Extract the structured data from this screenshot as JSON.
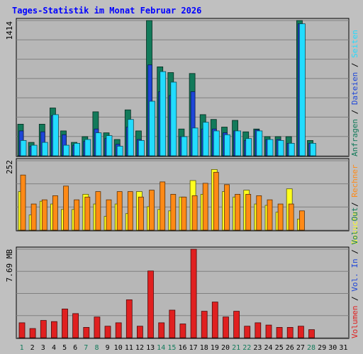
{
  "colors": {
    "background": "#c0c0c0",
    "panel": "#b7b7b7",
    "grid": "#808080",
    "title": "#0000ff",
    "anfragen": "#127a5a",
    "dateien": "#1e46d8",
    "seiten": "#22dcff",
    "besuche": "#ffff1e",
    "rechner": "#ff8a16",
    "volumen": "#e02020",
    "day_weekend": "#127a5a",
    "day_weekday": "#000000"
  },
  "chart_data": {
    "type": "bar",
    "title": "Tages-Statistik im Monat Februar 2026",
    "x": [
      "1",
      "2",
      "3",
      "4",
      "5",
      "6",
      "7",
      "8",
      "9",
      "10",
      "11",
      "12",
      "13",
      "14",
      "15",
      "16",
      "17",
      "18",
      "19",
      "20",
      "21",
      "22",
      "23",
      "24",
      "25",
      "26",
      "27",
      "28",
      "29",
      "30",
      "31"
    ],
    "weekend_days": [
      "1",
      "7",
      "8",
      "14",
      "15",
      "21",
      "22",
      "28"
    ],
    "panels": [
      {
        "id": "top",
        "ymax": 1414,
        "ymax_label": "1414",
        "legend": [
          "Anfragen",
          "Dateien",
          "Seiten"
        ],
        "series": [
          {
            "name": "Anfragen",
            "color_key": "anfragen",
            "values": [
              330,
              140,
              330,
              500,
              260,
              140,
              200,
              460,
              240,
              170,
              480,
              260,
              1414,
              930,
              870,
              280,
              860,
              430,
              380,
              300,
              370,
              250,
              280,
              200,
              200,
              200,
              1414,
              160,
              0,
              0,
              0
            ]
          },
          {
            "name": "Dateien",
            "color_key": "dateien",
            "values": [
              260,
              100,
              250,
              420,
              220,
              110,
              150,
              280,
              180,
              120,
              300,
              170,
              950,
              670,
              630,
              200,
              670,
              280,
              280,
              240,
              260,
              160,
              270,
              170,
              170,
              130,
              1380,
              130,
              0,
              0,
              0
            ]
          },
          {
            "name": "Seiten",
            "color_key": "seiten",
            "values": [
              160,
              110,
              140,
              430,
              110,
              130,
              170,
              240,
              210,
              100,
              380,
              160,
              570,
              880,
              770,
              200,
              290,
              350,
              260,
              220,
              260,
              180,
              260,
              170,
              160,
              130,
              1380,
              130,
              0,
              0,
              0
            ]
          }
        ]
      },
      {
        "id": "middle",
        "ymax": 252,
        "ymax_label": "252",
        "legend": [
          "Besuche",
          "Rechner"
        ],
        "series": [
          {
            "name": "Besuche",
            "color_key": "besuche",
            "values": [
              140,
              55,
              105,
              95,
              75,
              75,
              130,
              95,
              50,
              95,
              60,
              140,
              85,
              75,
              70,
              120,
              180,
              130,
              220,
              140,
              120,
              145,
              95,
              90,
              65,
              150,
              40,
              0,
              0,
              0,
              0
            ]
          },
          {
            "name": "Rechner",
            "color_key": "rechner",
            "values": [
              200,
              95,
              110,
              125,
              160,
              110,
              120,
              140,
              110,
              140,
              140,
              120,
              145,
              175,
              130,
              120,
              125,
              170,
              210,
              165,
              130,
              130,
              125,
              110,
              95,
              95,
              70,
              0,
              0,
              0,
              0
            ]
          }
        ]
      },
      {
        "id": "bottom",
        "ymax": 7.69,
        "ymax_label": "7.69 MB",
        "legend": [
          "Volumen",
          "Vol. In",
          "Vol. Out"
        ],
        "series": [
          {
            "name": "Volumen",
            "color_key": "volumen",
            "values": [
              1.3,
              0.8,
              1.5,
              1.4,
              2.5,
              2.1,
              0.9,
              1.8,
              1.0,
              1.3,
              3.3,
              1.0,
              5.8,
              1.3,
              2.4,
              1.2,
              7.69,
              2.3,
              3.1,
              1.8,
              2.3,
              1.0,
              1.3,
              1.1,
              0.9,
              0.9,
              1.0,
              0.7,
              0,
              0,
              0
            ]
          }
        ]
      }
    ]
  }
}
